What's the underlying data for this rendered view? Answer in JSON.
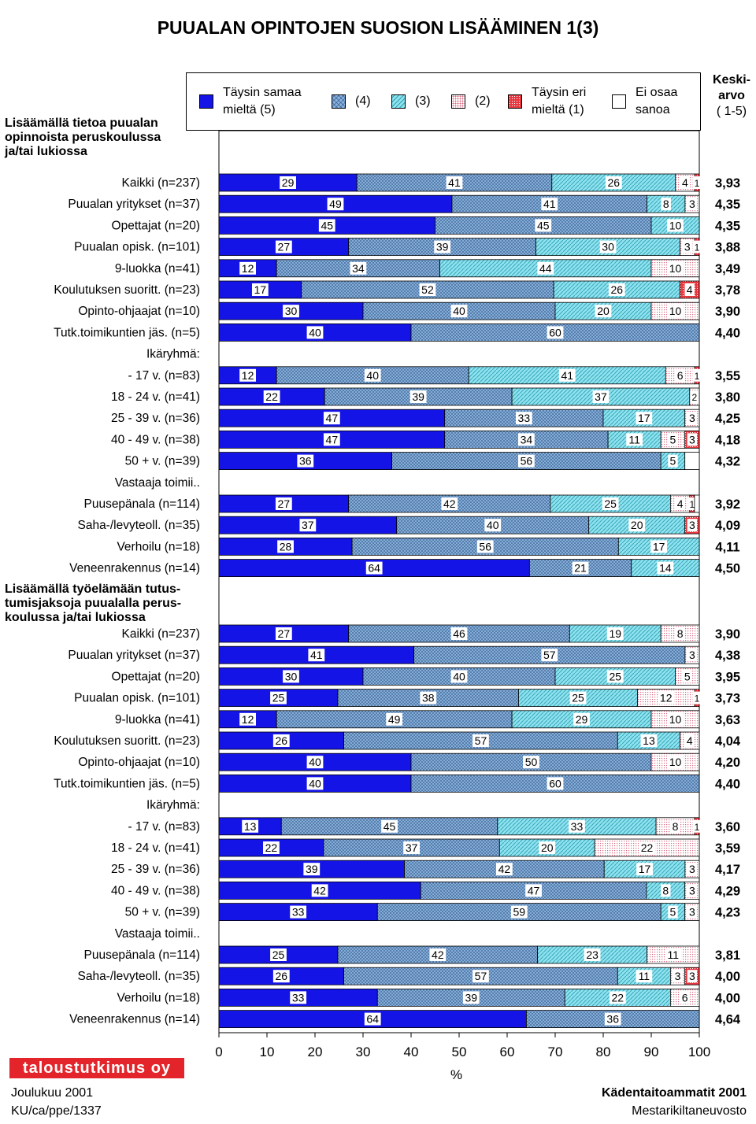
{
  "title": "PUUALAN OPINTOJEN SUOSION LISÄÄMINEN 1(3)",
  "legend": [
    {
      "label": "Täysin samaa mieltä (5)",
      "color": "#1414e6",
      "pattern": "solid"
    },
    {
      "label": "(4)",
      "color": "#8ab4e0",
      "pattern": "cross"
    },
    {
      "label": "(3)",
      "color": "#8fe3f0",
      "pattern": "diag"
    },
    {
      "label": "(2)",
      "color": "#f3c9d3",
      "pattern": "dots"
    },
    {
      "label": "Täysin eri mieltä (1)",
      "color": "#e8363e",
      "pattern": "dense"
    },
    {
      "label": "Ei osaa sanoa",
      "color": "#ffffff",
      "pattern": "empty"
    }
  ],
  "keskiarvo_header": "Keski-arvo",
  "keskiarvo_range": "( 1-5)",
  "chart_data": {
    "type": "bar",
    "orientation": "horizontal-stacked-percent",
    "xlabel": "%",
    "xlim": [
      0,
      100
    ],
    "xticks": [
      "0",
      "10",
      "20",
      "30",
      "40",
      "50",
      "60",
      "70",
      "80",
      "90",
      "100"
    ],
    "series_names": [
      "Täysin samaa mieltä (5)",
      "(4)",
      "(3)",
      "(2)",
      "Täysin eri mieltä (1)",
      "Ei osaa sanoa"
    ],
    "sections": [
      {
        "heading": "Lisäämällä tietoa puualan opinnoista peruskoulussa ja/tai lukiossa",
        "rows": [
          {
            "label": "Kaikki (n=237)",
            "values": [
              29,
              41,
              26,
              4,
              1,
              0
            ],
            "mean": "3,93"
          },
          {
            "label": "Puualan yritykset (n=37)",
            "values": [
              49,
              41,
              8,
              3,
              0,
              0
            ],
            "mean": "4,35"
          },
          {
            "label": "Opettajat (n=20)",
            "values": [
              45,
              45,
              10,
              0,
              0,
              0
            ],
            "mean": "4,35"
          },
          {
            "label": "Puualan opisk. (n=101)",
            "values": [
              27,
              39,
              30,
              3,
              1,
              0
            ],
            "mean": "3,88"
          },
          {
            "label": "9-luokka (n=41)",
            "values": [
              12,
              34,
              44,
              10,
              0,
              0
            ],
            "mean": "3,49"
          },
          {
            "label": "Koulutuksen suoritt. (n=23)",
            "values": [
              17,
              52,
              26,
              0,
              4,
              0
            ],
            "mean": "3,78"
          },
          {
            "label": "Opinto-ohjaajat (n=10)",
            "values": [
              30,
              40,
              20,
              10,
              0,
              0
            ],
            "mean": "3,90"
          },
          {
            "label": "Tutk.toimikuntien jäs. (n=5)",
            "values": [
              40,
              60,
              0,
              0,
              0,
              0
            ],
            "mean": "4,40"
          },
          {
            "label": "Ikäryhmä:",
            "subheading": true
          },
          {
            "label": "- 17 v.  (n=83)",
            "values": [
              12,
              40,
              41,
              6,
              1,
              0
            ],
            "mean": "3,55"
          },
          {
            "label": "18 - 24 v. (n=41)",
            "values": [
              22,
              39,
              37,
              2,
              0,
              0
            ],
            "mean": "3,80"
          },
          {
            "label": "25 - 39 v. (n=36)",
            "values": [
              47,
              33,
              17,
              3,
              0,
              0
            ],
            "mean": "4,25"
          },
          {
            "label": "40 - 49 v. (n=38)",
            "values": [
              47,
              34,
              11,
              5,
              3,
              0
            ],
            "mean": "4,18"
          },
          {
            "label": "50 + v.  (n=39)",
            "values": [
              36,
              56,
              5,
              0,
              0,
              3
            ],
            "mean": "4,32"
          },
          {
            "label": "Vastaaja toimii..",
            "subheading": true
          },
          {
            "label": "Puusepänala (n=114)",
            "values": [
              27,
              42,
              25,
              4,
              1,
              1
            ],
            "mean": "3,92"
          },
          {
            "label": "Saha-/levyteoll. (n=35)",
            "values": [
              37,
              40,
              20,
              0,
              3,
              0
            ],
            "mean": "4,09"
          },
          {
            "label": "Verhoilu (n=18)",
            "values": [
              28,
              56,
              17,
              0,
              0,
              0
            ],
            "mean": "4,11"
          },
          {
            "label": "Veneenrakennus (n=14)",
            "values": [
              64,
              21,
              14,
              0,
              0,
              0
            ],
            "mean": "4,50"
          }
        ]
      },
      {
        "heading": "Lisäämällä työelämään tutus-tumisjaksoja puualalla perus-koulussa ja/tai lukiossa",
        "rows": [
          {
            "label": "Kaikki (n=237)",
            "values": [
              27,
              46,
              19,
              8,
              0,
              0
            ],
            "mean": "3,90"
          },
          {
            "label": "Puualan yritykset (n=37)",
            "values": [
              41,
              57,
              0,
              3,
              0,
              0
            ],
            "mean": "4,38"
          },
          {
            "label": "Opettajat (n=20)",
            "values": [
              30,
              40,
              25,
              5,
              0,
              0
            ],
            "mean": "3,95"
          },
          {
            "label": "Puualan opisk. (n=101)",
            "values": [
              25,
              38,
              25,
              12,
              1,
              0
            ],
            "mean": "3,73"
          },
          {
            "label": "9-luokka (n=41)",
            "values": [
              12,
              49,
              29,
              10,
              0,
              0
            ],
            "mean": "3,63"
          },
          {
            "label": "Koulutuksen suoritt. (n=23)",
            "values": [
              26,
              57,
              13,
              4,
              0,
              0
            ],
            "mean": "4,04"
          },
          {
            "label": "Opinto-ohjaajat (n=10)",
            "values": [
              40,
              50,
              0,
              10,
              0,
              0
            ],
            "mean": "4,20"
          },
          {
            "label": "Tutk.toimikuntien jäs. (n=5)",
            "values": [
              40,
              60,
              0,
              0,
              0,
              0
            ],
            "mean": "4,40"
          },
          {
            "label": "Ikäryhmä:",
            "subheading": true
          },
          {
            "label": "- 17 v.  (n=83)",
            "values": [
              13,
              45,
              33,
              8,
              1,
              0
            ],
            "mean": "3,60"
          },
          {
            "label": "18 - 24 v. (n=41)",
            "values": [
              22,
              37,
              20,
              22,
              0,
              0
            ],
            "mean": "3,59"
          },
          {
            "label": "25 - 39 v. (n=36)",
            "values": [
              39,
              42,
              17,
              3,
              0,
              0
            ],
            "mean": "4,17"
          },
          {
            "label": "40 - 49 v. (n=38)",
            "values": [
              42,
              47,
              8,
              3,
              0,
              0
            ],
            "mean": "4,29"
          },
          {
            "label": "50 + v.  (n=39)",
            "values": [
              33,
              59,
              5,
              3,
              0,
              0
            ],
            "mean": "4,23"
          },
          {
            "label": "Vastaaja toimii..",
            "subheading": true
          },
          {
            "label": "Puusepänala (n=114)",
            "values": [
              25,
              42,
              23,
              11,
              0,
              0
            ],
            "mean": "3,81"
          },
          {
            "label": "Saha-/levyteoll. (n=35)",
            "values": [
              26,
              57,
              11,
              3,
              3,
              0
            ],
            "mean": "4,00"
          },
          {
            "label": "Verhoilu (n=18)",
            "values": [
              33,
              39,
              22,
              6,
              0,
              0
            ],
            "mean": "4,00"
          },
          {
            "label": "Veneenrakennus (n=14)",
            "values": [
              64,
              36,
              0,
              0,
              0,
              0
            ],
            "mean": "4,64"
          }
        ]
      }
    ]
  },
  "footer": {
    "logo": "taloustutkimus oy",
    "date": "Joulukuu 2001",
    "code": "KU/ca/ppe/1337",
    "org1": "Kädentaitoammatit 2001",
    "org2": "Mestarikiltaneuvosto"
  }
}
